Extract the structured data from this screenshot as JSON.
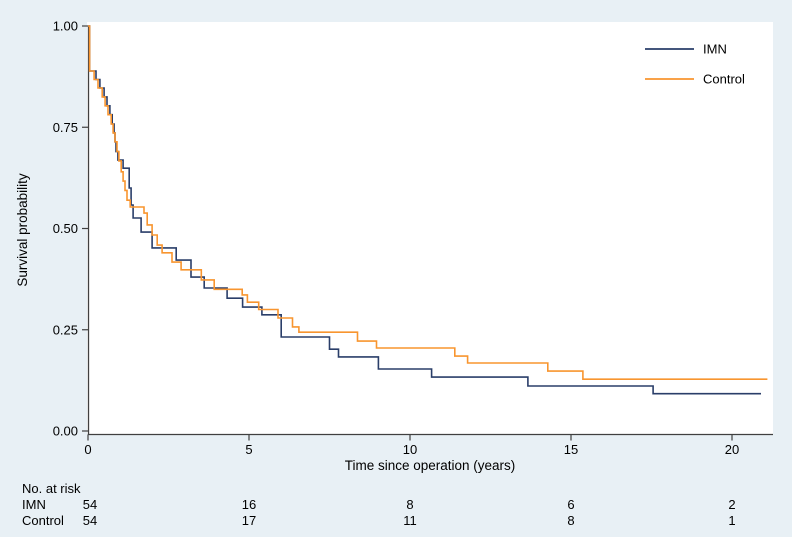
{
  "figure": {
    "background_color": "#e8f0f5",
    "plot_background_color": "#ffffff",
    "axis_color": "#404040",
    "text_color": "#000000"
  },
  "chart_data": {
    "type": "line",
    "subtype": "kaplan-meier-step",
    "title": "",
    "xlabel": "Time since operation (years)",
    "ylabel": "Survival probability",
    "xlim": [
      0,
      21.3
    ],
    "ylim": [
      0,
      1
    ],
    "x_ticks": [
      "0",
      "5",
      "10",
      "15",
      "20"
    ],
    "x_tick_values": [
      0,
      5,
      10,
      15,
      20
    ],
    "y_ticks": [
      "0.00",
      "0.25",
      "0.50",
      "0.75",
      "1.00"
    ],
    "y_tick_values": [
      0,
      0.25,
      0.5,
      0.75,
      1
    ],
    "grid": false,
    "legend_position": "top-right-inside",
    "series": [
      {
        "name": "IMN",
        "color": "#2a3e69",
        "start": [
          0,
          1.0
        ],
        "end_time": 20.9,
        "points": [
          [
            0.05,
            0.889
          ],
          [
            0.25,
            0.868
          ],
          [
            0.37,
            0.847
          ],
          [
            0.5,
            0.825
          ],
          [
            0.59,
            0.803
          ],
          [
            0.68,
            0.781
          ],
          [
            0.75,
            0.758
          ],
          [
            0.81,
            0.736
          ],
          [
            0.84,
            0.714
          ],
          [
            0.87,
            0.69
          ],
          [
            0.93,
            0.669
          ],
          [
            1.09,
            0.649
          ],
          [
            1.28,
            0.6
          ],
          [
            1.34,
            0.558
          ],
          [
            1.4,
            0.526
          ],
          [
            1.65,
            0.491
          ],
          [
            1.99,
            0.452
          ],
          [
            2.74,
            0.422
          ],
          [
            3.2,
            0.38
          ],
          [
            3.61,
            0.353
          ],
          [
            4.32,
            0.328
          ],
          [
            4.8,
            0.306
          ],
          [
            5.4,
            0.287
          ],
          [
            6.0,
            0.232
          ],
          [
            7.5,
            0.202
          ],
          [
            7.78,
            0.183
          ],
          [
            9.02,
            0.153
          ],
          [
            10.67,
            0.133
          ],
          [
            13.66,
            0.111
          ],
          [
            17.55,
            0.092
          ]
        ]
      },
      {
        "name": "Control",
        "color": "#f8952f",
        "start": [
          0,
          1.0
        ],
        "end_time": 21.1,
        "points": [
          [
            0.05,
            0.889
          ],
          [
            0.19,
            0.868
          ],
          [
            0.31,
            0.847
          ],
          [
            0.44,
            0.825
          ],
          [
            0.53,
            0.803
          ],
          [
            0.62,
            0.781
          ],
          [
            0.72,
            0.758
          ],
          [
            0.78,
            0.736
          ],
          [
            0.84,
            0.714
          ],
          [
            0.9,
            0.69
          ],
          [
            0.96,
            0.667
          ],
          [
            1.03,
            0.64
          ],
          [
            1.09,
            0.617
          ],
          [
            1.15,
            0.594
          ],
          [
            1.21,
            0.57
          ],
          [
            1.31,
            0.553
          ],
          [
            1.74,
            0.538
          ],
          [
            1.84,
            0.509
          ],
          [
            1.99,
            0.484
          ],
          [
            2.15,
            0.459
          ],
          [
            2.3,
            0.44
          ],
          [
            2.61,
            0.417
          ],
          [
            2.89,
            0.398
          ],
          [
            3.52,
            0.373
          ],
          [
            3.92,
            0.35
          ],
          [
            4.79,
            0.336
          ],
          [
            4.95,
            0.318
          ],
          [
            5.3,
            0.3
          ],
          [
            5.9,
            0.279
          ],
          [
            6.35,
            0.257
          ],
          [
            6.55,
            0.244
          ],
          [
            8.37,
            0.222
          ],
          [
            8.96,
            0.205
          ],
          [
            11.39,
            0.185
          ],
          [
            11.79,
            0.168
          ],
          [
            14.28,
            0.148
          ],
          [
            15.37,
            0.128
          ]
        ]
      }
    ]
  },
  "risk_table": {
    "title": "No. at risk",
    "column_times": [
      0,
      5,
      10,
      15,
      20
    ],
    "rows": [
      {
        "label": "IMN",
        "values": [
          "54",
          "16",
          "8",
          "6",
          "2"
        ]
      },
      {
        "label": "Control",
        "values": [
          "54",
          "17",
          "11",
          "8",
          "1"
        ]
      }
    ]
  }
}
